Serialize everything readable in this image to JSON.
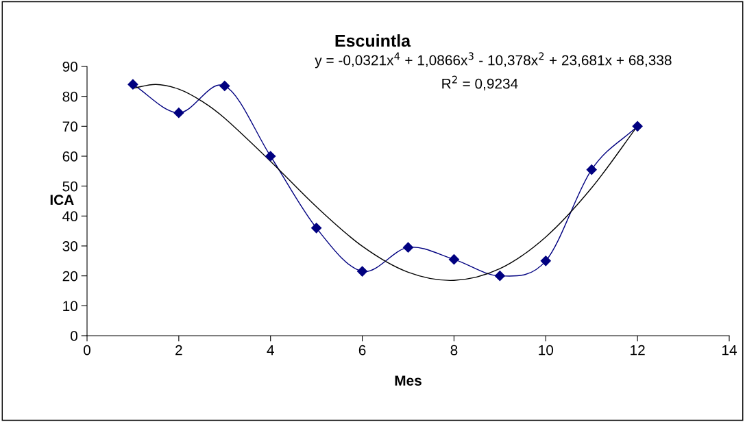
{
  "chart_data": {
    "type": "line",
    "title": "Escuintla",
    "xlabel": "Mes",
    "ylabel": "ICA",
    "xlim": [
      0,
      14
    ],
    "xticks": [
      0,
      2,
      4,
      6,
      8,
      10,
      12,
      14
    ],
    "ylim": [
      0,
      90
    ],
    "yticks": [
      0,
      10,
      20,
      30,
      40,
      50,
      60,
      70,
      80,
      90
    ],
    "grid": false,
    "legend": false,
    "series": [
      {
        "x": [
          1,
          2,
          3,
          4,
          5,
          6,
          7,
          8,
          9,
          10,
          11,
          12
        ],
        "values": [
          84,
          74.5,
          83.5,
          60,
          36,
          21.5,
          29.5,
          25.5,
          20,
          25,
          55.5,
          70
        ],
        "color": "#000080",
        "marker": "diamond"
      },
      {
        "x": [
          1,
          1.5,
          2,
          2.5,
          3,
          4,
          5,
          6,
          7,
          8,
          9,
          10,
          11,
          12
        ],
        "values": [
          82.7,
          84,
          82.4,
          78.4,
          72.7,
          58.3,
          43.1,
          29.9,
          21.2,
          18.5,
          22.4,
          33,
          49.4,
          70.1
        ],
        "color": "#000000",
        "marker": "none"
      }
    ],
    "annotations": [
      "y = -0,0321x$^{4}$ + 1,0866x$^{3}$ - 10,378x$^{2}$ + 23,681x + 68,338",
      "R$^{2}$ = 0,9234"
    ]
  }
}
